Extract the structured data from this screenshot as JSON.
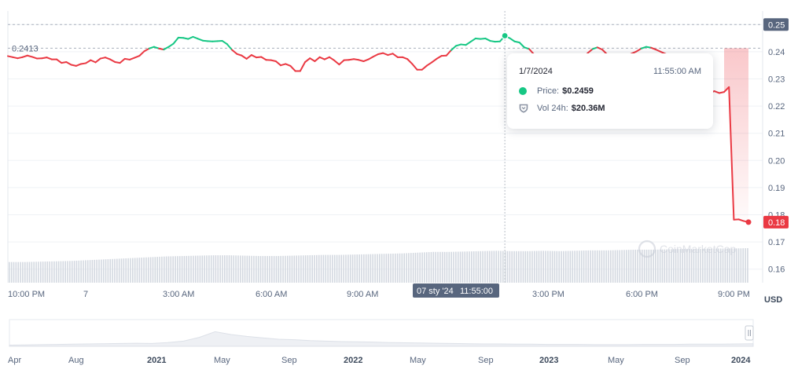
{
  "chart_data": {
    "type": "line",
    "ylabel": "USD",
    "ylim": [
      0.155,
      0.255
    ],
    "y_ticks": [
      "0.25",
      "0.24",
      "0.23",
      "0.22",
      "0.21",
      "0.20",
      "0.19",
      "0.18",
      "0.17",
      "0.16"
    ],
    "x_ticks": [
      "10:00 PM",
      "7",
      "3:00 AM",
      "6:00 AM",
      "9:00 AM",
      "3:00 PM",
      "6:00 PM",
      "9:00 PM"
    ],
    "reference_price": "0.2413",
    "max_price_badge": "0.25",
    "last_price_badge": "0.18",
    "crosshair_label": {
      "date": "07 sty '24",
      "time": "11:55:00"
    },
    "watermark": "CoinMarketCap",
    "series": [
      {
        "name": "Price",
        "values": [
          0.2384,
          0.238,
          0.2376,
          0.238,
          0.2386,
          0.2381,
          0.2375,
          0.2376,
          0.2379,
          0.2372,
          0.2372,
          0.2359,
          0.2362,
          0.2352,
          0.2348,
          0.2355,
          0.2358,
          0.2369,
          0.2361,
          0.2375,
          0.2379,
          0.2372,
          0.2362,
          0.2359,
          0.2374,
          0.2371,
          0.2378,
          0.2385,
          0.2402,
          0.2412,
          0.2418,
          0.2412,
          0.2408,
          0.2418,
          0.243,
          0.2452,
          0.2451,
          0.2447,
          0.2455,
          0.2448,
          0.2441,
          0.2439,
          0.2438,
          0.2439,
          0.244,
          0.2428,
          0.2407,
          0.2392,
          0.2386,
          0.2374,
          0.2388,
          0.2379,
          0.2381,
          0.237,
          0.2369,
          0.2365,
          0.235,
          0.2355,
          0.2348,
          0.2329,
          0.2329,
          0.2362,
          0.2376,
          0.2365,
          0.238,
          0.2372,
          0.238,
          0.2368,
          0.2353,
          0.2369,
          0.237,
          0.2373,
          0.237,
          0.2365,
          0.2372,
          0.2382,
          0.2391,
          0.2395,
          0.2388,
          0.2393,
          0.238,
          0.238,
          0.2373,
          0.2355,
          0.2334,
          0.2334,
          0.2349,
          0.2361,
          0.2374,
          0.2385,
          0.2386,
          0.2406,
          0.2422,
          0.2427,
          0.2425,
          0.2437,
          0.2449,
          0.2447,
          0.2449,
          0.244,
          0.2437,
          0.2438,
          0.2459,
          0.245,
          0.2438,
          0.2434,
          0.2416,
          0.241,
          0.239,
          0.2372,
          0.2368,
          0.2378,
          0.2376,
          0.2371,
          0.2368,
          0.2376,
          0.238,
          0.2376,
          0.2376,
          0.2395,
          0.241,
          0.2416,
          0.2408,
          0.239,
          0.2376,
          0.2376,
          0.238,
          0.2385,
          0.2393,
          0.2401,
          0.2412,
          0.2418,
          0.2415,
          0.2408,
          0.24,
          0.2392,
          0.238,
          0.2368,
          0.2355,
          0.233,
          0.228,
          0.2255,
          0.2252,
          0.2252,
          0.2248,
          0.2255,
          0.2248,
          0.2252,
          0.227,
          0.1782,
          0.1783,
          0.1777,
          0.1773
        ]
      }
    ],
    "highlight": {
      "index": 102,
      "value": 0.2459
    },
    "volume_relative": [
      0.55,
      0.55,
      0.56,
      0.57,
      0.58,
      0.6,
      0.62,
      0.64,
      0.66,
      0.68,
      0.7,
      0.71,
      0.72,
      0.73,
      0.73,
      0.72,
      0.71,
      0.71,
      0.72,
      0.73,
      0.74,
      0.74,
      0.75,
      0.76,
      0.77,
      0.78,
      0.8,
      0.82,
      0.82,
      0.83,
      0.84,
      0.85,
      0.84,
      0.84,
      0.85,
      0.84,
      0.85,
      0.86,
      0.86,
      0.87,
      0.88,
      0.88,
      0.89,
      0.9,
      0.9,
      0.91,
      0.91,
      0.92
    ],
    "navigator": {
      "labels": [
        "Apr",
        "Aug",
        "2021",
        "May",
        "Sep",
        "2022",
        "May",
        "Sep",
        "2023",
        "May",
        "Sep",
        "2024"
      ],
      "bold": [
        false,
        false,
        true,
        false,
        false,
        true,
        false,
        false,
        true,
        false,
        false,
        true
      ],
      "profile": [
        0.05,
        0.06,
        0.07,
        0.08,
        0.09,
        0.1,
        0.11,
        0.12,
        0.13,
        0.12,
        0.16,
        0.22,
        0.38,
        0.62,
        0.5,
        0.42,
        0.36,
        0.3,
        0.28,
        0.24,
        0.22,
        0.2,
        0.19,
        0.18,
        0.16,
        0.15,
        0.14,
        0.13,
        0.12,
        0.11,
        0.1,
        0.1,
        0.09,
        0.09,
        0.08,
        0.08,
        0.08,
        0.07,
        0.07,
        0.07,
        0.08,
        0.08,
        0.08,
        0.09,
        0.09,
        0.09,
        0.1,
        0.11
      ]
    },
    "colors": {
      "up": "#16c784",
      "down": "#ea3943",
      "grid": "#eff2f5",
      "volume": "#d3d8e0",
      "crosshair": "#b7bdc6",
      "label_bg": "#58667e"
    }
  },
  "tooltip": {
    "date": "1/7/2024",
    "time": "11:55:00 AM",
    "price_label": "Price:",
    "price_value": "$0.2459",
    "vol_label": "Vol 24h:",
    "vol_value": "$20.36M"
  }
}
